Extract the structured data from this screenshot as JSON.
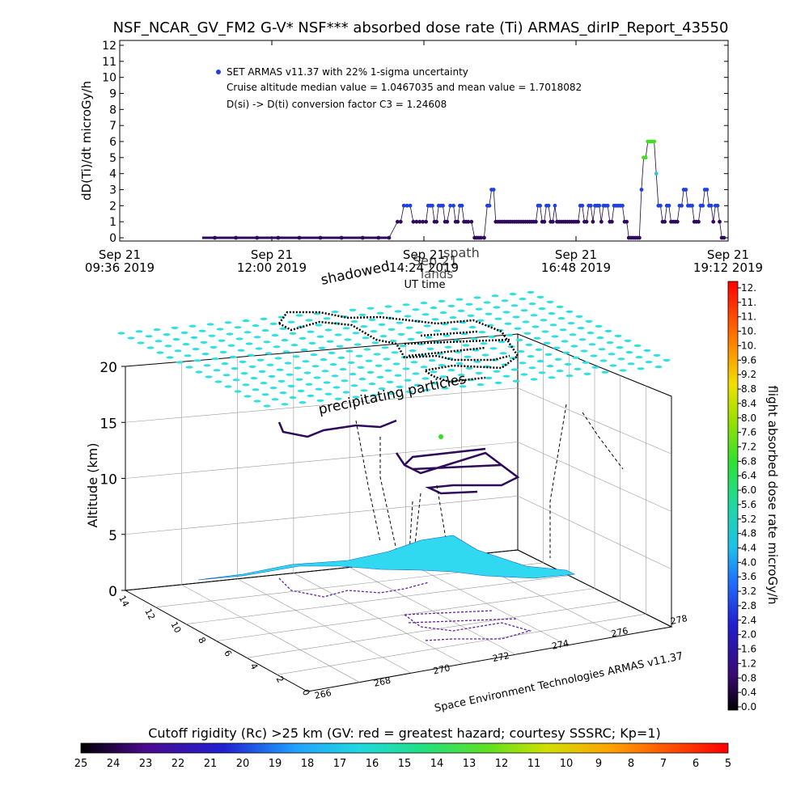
{
  "chart_data": [
    {
      "type": "scatter",
      "title": "NSF_NCAR_GV_FM2 G-V* NSF*** absorbed dose rate (Ti) ARMAS_dirIP_Report_43550",
      "xlabel": "UT time",
      "ylabel": "dD(Ti)/dt microGy/h",
      "ylim": [
        0,
        12
      ],
      "xlim_minutes": [
        0,
        576
      ],
      "x_tick_labels": [
        [
          "Sep 21",
          "09:36 2019"
        ],
        [
          "Sep 21",
          "12:00 2019"
        ],
        [
          "Sep 21",
          "14:24 2019"
        ],
        [
          "Sep 21",
          "16:48 2019"
        ],
        [
          "Sep 21",
          "19:12 2019"
        ]
      ],
      "y_ticks": [
        0,
        1,
        2,
        3,
        4,
        5,
        6,
        7,
        8,
        9,
        10,
        11,
        12
      ],
      "legend": {
        "marker_label": "SET ARMAS v11.37 with 22% 1-sigma uncertainty",
        "median_line": "Cruise altitude median value = 1.0467035 and mean value = 1.7018082",
        "conversion_line": "D(si) -> D(ti) conversion factor C3 = 1.24608",
        "placement": "top-left"
      },
      "series": [
        {
          "name": "SET ARMAS v11.37 with 22% 1-sigma uncertainty",
          "points": [
            [
              90,
              0
            ],
            [
              110,
              0
            ],
            [
              130,
              0
            ],
            [
              150,
              0
            ],
            [
              170,
              0
            ],
            [
              190,
              0
            ],
            [
              210,
              0
            ],
            [
              230,
              0
            ],
            [
              245,
              0
            ],
            [
              255,
              0
            ],
            [
              263,
              1
            ],
            [
              266,
              1
            ],
            [
              269,
              2
            ],
            [
              272,
              2
            ],
            [
              275,
              2
            ],
            [
              278,
              1
            ],
            [
              281,
              1
            ],
            [
              284,
              1
            ],
            [
              287,
              1
            ],
            [
              290,
              1
            ],
            [
              292,
              2
            ],
            [
              294,
              2
            ],
            [
              296,
              2
            ],
            [
              298,
              1
            ],
            [
              300,
              1
            ],
            [
              302,
              2
            ],
            [
              304,
              2
            ],
            [
              306,
              2
            ],
            [
              308,
              1
            ],
            [
              310,
              1
            ],
            [
              313,
              2
            ],
            [
              316,
              2
            ],
            [
              318,
              1
            ],
            [
              320,
              1
            ],
            [
              322,
              2
            ],
            [
              324,
              2
            ],
            [
              326,
              1
            ],
            [
              328,
              1
            ],
            [
              330,
              1
            ],
            [
              333,
              1
            ],
            [
              336,
              0
            ],
            [
              338,
              0
            ],
            [
              340,
              0
            ],
            [
              342,
              0
            ],
            [
              345,
              0
            ],
            [
              348,
              2
            ],
            [
              350,
              2
            ],
            [
              352,
              3
            ],
            [
              354,
              3
            ],
            [
              356,
              1
            ],
            [
              358,
              1
            ],
            [
              360,
              1
            ],
            [
              362,
              1
            ],
            [
              364,
              1
            ],
            [
              366,
              1
            ],
            [
              368,
              1
            ],
            [
              370,
              1
            ],
            [
              372,
              1
            ],
            [
              374,
              1
            ],
            [
              376,
              1
            ],
            [
              378,
              1
            ],
            [
              380,
              1
            ],
            [
              382,
              1
            ],
            [
              384,
              1
            ],
            [
              386,
              1
            ],
            [
              388,
              1
            ],
            [
              390,
              1
            ],
            [
              392,
              1
            ],
            [
              394,
              1
            ],
            [
              396,
              2
            ],
            [
              398,
              2
            ],
            [
              400,
              1
            ],
            [
              402,
              1
            ],
            [
              404,
              2
            ],
            [
              406,
              2
            ],
            [
              408,
              1
            ],
            [
              410,
              1
            ],
            [
              412,
              2
            ],
            [
              414,
              1
            ],
            [
              416,
              1
            ],
            [
              418,
              1
            ],
            [
              420,
              1
            ],
            [
              422,
              1
            ],
            [
              424,
              1
            ],
            [
              426,
              1
            ],
            [
              428,
              1
            ],
            [
              430,
              1
            ],
            [
              432,
              1
            ],
            [
              434,
              1
            ],
            [
              436,
              2
            ],
            [
              438,
              2
            ],
            [
              440,
              1
            ],
            [
              442,
              1
            ],
            [
              444,
              2
            ],
            [
              446,
              2
            ],
            [
              448,
              1
            ],
            [
              450,
              2
            ],
            [
              452,
              2
            ],
            [
              454,
              2
            ],
            [
              456,
              1
            ],
            [
              458,
              2
            ],
            [
              460,
              2
            ],
            [
              462,
              2
            ],
            [
              464,
              1
            ],
            [
              466,
              1
            ],
            [
              468,
              2
            ],
            [
              470,
              2
            ],
            [
              472,
              2
            ],
            [
              474,
              2
            ],
            [
              476,
              2
            ],
            [
              478,
              1
            ],
            [
              480,
              1
            ],
            [
              482,
              0
            ],
            [
              484,
              0
            ],
            [
              486,
              0
            ],
            [
              488,
              0
            ],
            [
              490,
              0
            ],
            [
              492,
              0
            ],
            [
              494,
              3
            ],
            [
              496,
              5
            ],
            [
              498,
              5
            ],
            [
              500,
              6
            ],
            [
              502,
              6
            ],
            [
              504,
              6
            ],
            [
              506,
              6
            ],
            [
              508,
              4
            ],
            [
              510,
              2
            ],
            [
              512,
              2
            ],
            [
              514,
              1
            ],
            [
              516,
              1
            ],
            [
              518,
              2
            ],
            [
              520,
              2
            ],
            [
              522,
              1
            ],
            [
              524,
              1
            ],
            [
              526,
              1
            ],
            [
              528,
              1
            ],
            [
              530,
              2
            ],
            [
              532,
              2
            ],
            [
              534,
              3
            ],
            [
              536,
              3
            ],
            [
              538,
              2
            ],
            [
              540,
              2
            ],
            [
              542,
              2
            ],
            [
              544,
              1
            ],
            [
              546,
              1
            ],
            [
              548,
              1
            ],
            [
              550,
              2
            ],
            [
              552,
              2
            ],
            [
              554,
              3
            ],
            [
              556,
              3
            ],
            [
              558,
              2
            ],
            [
              560,
              2
            ],
            [
              562,
              1
            ],
            [
              564,
              2
            ],
            [
              566,
              2
            ],
            [
              568,
              1
            ],
            [
              570,
              0
            ],
            [
              572,
              0
            ]
          ]
        }
      ],
      "marker_colors": {
        "low": "#2e0a5a",
        "mid": "#2040e0",
        "high": "#40e020",
        "cyan": "#30c0e0"
      }
    },
    {
      "type": "scatter",
      "title": "",
      "zlabel": "Altitude (km)",
      "z_ticks": [
        0,
        5,
        10,
        15,
        20
      ],
      "x_ticks": [
        266,
        268,
        270,
        272,
        274,
        276,
        278
      ],
      "y_ticks": [
        0,
        2,
        4,
        6,
        8,
        10,
        12,
        14
      ],
      "annotations": [
        "shadowed",
        "Sep 21",
        "spath",
        "lands",
        "precipitating particles"
      ],
      "footer": "Space Environment Technologies ARMAS v11.37",
      "grid": true
    },
    {
      "type": "heatmap",
      "title": "flight absorbed dose rate microGy/h",
      "orientation": "vertical",
      "ticks": [
        "12.",
        "11.",
        "11.",
        "10.",
        "10.",
        "9.6",
        "9.2",
        "8.8",
        "8.4",
        "8.0",
        "7.6",
        "7.2",
        "6.8",
        "6.4",
        "6.0",
        "5.6",
        "5.2",
        "4.8",
        "4.4",
        "4.0",
        "3.6",
        "3.2",
        "2.8",
        "2.4",
        "2.0",
        "1.6",
        "1.2",
        "0.8",
        "0.4",
        "0.0"
      ]
    },
    {
      "type": "heatmap",
      "title": "Cutoff rigidity (Rc) >25 km (GV: red = greatest hazard; courtesy SSSRC; Kp=1)",
      "orientation": "horizontal",
      "ticks": [
        "25",
        "24",
        "23",
        "22",
        "21",
        "20",
        "19",
        "18",
        "17",
        "16",
        "15",
        "14",
        "13",
        "12",
        "11",
        "10",
        "9",
        "8",
        "7",
        "6",
        "5"
      ]
    }
  ]
}
